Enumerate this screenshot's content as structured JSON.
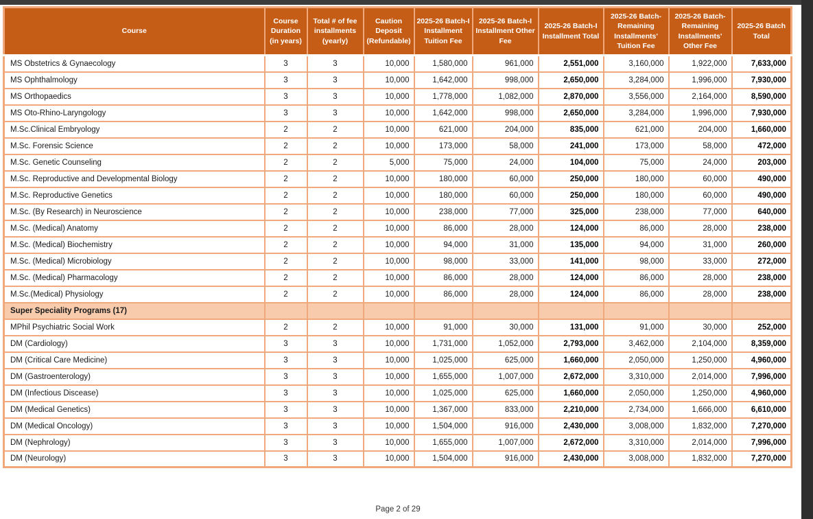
{
  "page": {
    "footer": "Page 2 of 29"
  },
  "colors": {
    "header_bg": "#c55d16",
    "section_row_bg": "#f8cbad",
    "grid_border": "#f0a97c",
    "viewer_chrome": "#3c3c3c"
  },
  "table": {
    "columns": [
      {
        "id": "course",
        "label": "Course"
      },
      {
        "id": "duration",
        "label": "Course\nDuration\n(in years)"
      },
      {
        "id": "installments",
        "label": "Total # of fee\ninstallments\n(yearly)"
      },
      {
        "id": "caution-deposit",
        "label": "Caution\nDeposit\n(Refundable)"
      },
      {
        "id": "batch1-tuition-fee",
        "label": "2025-26 Batch-I\nInstallment\nTuition Fee"
      },
      {
        "id": "batch1-other-fee",
        "label": "2025-26  Batch-I\nInstallment Other\nFee"
      },
      {
        "id": "batch1-total",
        "label": "2025-26  Batch-I\nInstallment Total"
      },
      {
        "id": "remaining-tuition-fee",
        "label": "2025-26 Batch-\nRemaining\nInstallments'\nTuition Fee"
      },
      {
        "id": "remaining-other-fee",
        "label": "2025-26 Batch-\nRemaining\nInstallments'\nOther Fee"
      },
      {
        "id": "batch-total",
        "label": "2025-26 Batch\nTotal"
      }
    ],
    "rows": [
      {
        "type": "data",
        "course": "MS Obstetrics & Gynaecology",
        "values": [
          "3",
          "3",
          "10,000",
          "1,580,000",
          "961,000",
          "2,551,000",
          "3,160,000",
          "1,922,000",
          "7,633,000"
        ]
      },
      {
        "type": "data",
        "course": "MS Ophthalmology",
        "values": [
          "3",
          "3",
          "10,000",
          "1,642,000",
          "998,000",
          "2,650,000",
          "3,284,000",
          "1,996,000",
          "7,930,000"
        ]
      },
      {
        "type": "data",
        "course": "MS Orthopaedics",
        "values": [
          "3",
          "3",
          "10,000",
          "1,778,000",
          "1,082,000",
          "2,870,000",
          "3,556,000",
          "2,164,000",
          "8,590,000"
        ]
      },
      {
        "type": "data",
        "course": "MS Oto-Rhino-Laryngology",
        "values": [
          "3",
          "3",
          "10,000",
          "1,642,000",
          "998,000",
          "2,650,000",
          "3,284,000",
          "1,996,000",
          "7,930,000"
        ]
      },
      {
        "type": "data",
        "course": "M.Sc.Clinical Embryology",
        "values": [
          "2",
          "2",
          "10,000",
          "621,000",
          "204,000",
          "835,000",
          "621,000",
          "204,000",
          "1,660,000"
        ]
      },
      {
        "type": "data",
        "course": "M.Sc. Forensic Science",
        "values": [
          "2",
          "2",
          "10,000",
          "173,000",
          "58,000",
          "241,000",
          "173,000",
          "58,000",
          "472,000"
        ]
      },
      {
        "type": "data",
        "course": "M.Sc. Genetic Counseling",
        "values": [
          "2",
          "2",
          "5,000",
          "75,000",
          "24,000",
          "104,000",
          "75,000",
          "24,000",
          "203,000"
        ]
      },
      {
        "type": "data",
        "course": "M.Sc. Reproductive and Developmental Biology",
        "values": [
          "2",
          "2",
          "10,000",
          "180,000",
          "60,000",
          "250,000",
          "180,000",
          "60,000",
          "490,000"
        ]
      },
      {
        "type": "data",
        "course": "M.Sc. Reproductive Genetics",
        "values": [
          "2",
          "2",
          "10,000",
          "180,000",
          "60,000",
          "250,000",
          "180,000",
          "60,000",
          "490,000"
        ]
      },
      {
        "type": "data",
        "course": "M.Sc. (By Research) in Neuroscience",
        "values": [
          "2",
          "2",
          "10,000",
          "238,000",
          "77,000",
          "325,000",
          "238,000",
          "77,000",
          "640,000"
        ]
      },
      {
        "type": "data",
        "course": "M.Sc. (Medical) Anatomy",
        "values": [
          "2",
          "2",
          "10,000",
          "86,000",
          "28,000",
          "124,000",
          "86,000",
          "28,000",
          "238,000"
        ]
      },
      {
        "type": "data",
        "course": "M.Sc. (Medical) Biochemistry",
        "values": [
          "2",
          "2",
          "10,000",
          "94,000",
          "31,000",
          "135,000",
          "94,000",
          "31,000",
          "260,000"
        ]
      },
      {
        "type": "data",
        "course": "M.Sc. (Medical) Microbiology",
        "values": [
          "2",
          "2",
          "10,000",
          "98,000",
          "33,000",
          "141,000",
          "98,000",
          "33,000",
          "272,000"
        ]
      },
      {
        "type": "data",
        "course": "M.Sc. (Medical) Pharmacology",
        "values": [
          "2",
          "2",
          "10,000",
          "86,000",
          "28,000",
          "124,000",
          "86,000",
          "28,000",
          "238,000"
        ]
      },
      {
        "type": "data",
        "course": "M.Sc.(Medical) Physiology",
        "values": [
          "2",
          "2",
          "10,000",
          "86,000",
          "28,000",
          "124,000",
          "86,000",
          "28,000",
          "238,000"
        ]
      },
      {
        "type": "section",
        "course": "Super Speciality Programs (17)",
        "values": [
          "",
          "",
          "",
          "",
          "",
          "",
          "",
          "",
          ""
        ]
      },
      {
        "type": "data",
        "course": "MPhil Psychiatric Social Work",
        "values": [
          "2",
          "2",
          "10,000",
          "91,000",
          "30,000",
          "131,000",
          "91,000",
          "30,000",
          "252,000"
        ]
      },
      {
        "type": "data",
        "course": "DM (Cardiology)",
        "values": [
          "3",
          "3",
          "10,000",
          "1,731,000",
          "1,052,000",
          "2,793,000",
          "3,462,000",
          "2,104,000",
          "8,359,000"
        ]
      },
      {
        "type": "data",
        "course": "DM (Critical Care Medicine)",
        "values": [
          "3",
          "3",
          "10,000",
          "1,025,000",
          "625,000",
          "1,660,000",
          "2,050,000",
          "1,250,000",
          "4,960,000"
        ]
      },
      {
        "type": "data",
        "course": "DM (Gastroenterology)",
        "values": [
          "3",
          "3",
          "10,000",
          "1,655,000",
          "1,007,000",
          "2,672,000",
          "3,310,000",
          "2,014,000",
          "7,996,000"
        ]
      },
      {
        "type": "data",
        "course": "DM (Infectious Discease)",
        "values": [
          "3",
          "3",
          "10,000",
          "1,025,000",
          "625,000",
          "1,660,000",
          "2,050,000",
          "1,250,000",
          "4,960,000"
        ]
      },
      {
        "type": "data",
        "course": "DM (Medical Genetics)",
        "values": [
          "3",
          "3",
          "10,000",
          "1,367,000",
          "833,000",
          "2,210,000",
          "2,734,000",
          "1,666,000",
          "6,610,000"
        ]
      },
      {
        "type": "data",
        "course": "DM (Medical Oncology)",
        "values": [
          "3",
          "3",
          "10,000",
          "1,504,000",
          "916,000",
          "2,430,000",
          "3,008,000",
          "1,832,000",
          "7,270,000"
        ]
      },
      {
        "type": "data",
        "course": "DM (Nephrology)",
        "values": [
          "3",
          "3",
          "10,000",
          "1,655,000",
          "1,007,000",
          "2,672,000",
          "3,310,000",
          "2,014,000",
          "7,996,000"
        ]
      },
      {
        "type": "data",
        "course": "DM (Neurology)",
        "values": [
          "3",
          "3",
          "10,000",
          "1,504,000",
          "916,000",
          "2,430,000",
          "3,008,000",
          "1,832,000",
          "7,270,000"
        ]
      }
    ]
  }
}
